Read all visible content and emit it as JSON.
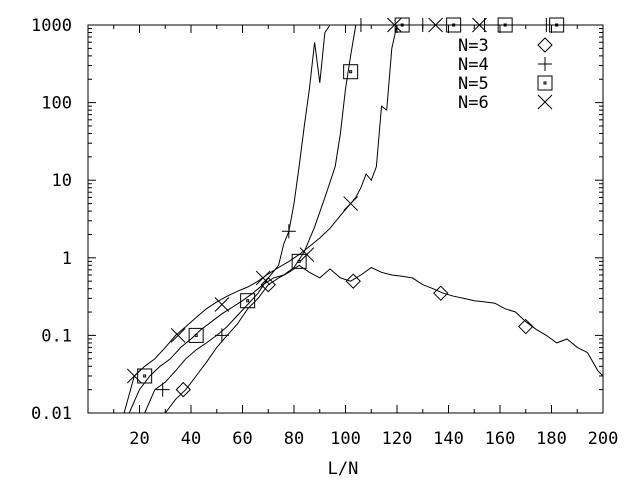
{
  "chart_data": {
    "type": "line",
    "xlabel": "L/N",
    "ylabel": "",
    "xlim": [
      0,
      200
    ],
    "ylim": [
      0.01,
      1000
    ],
    "yscale": "log",
    "grid": false,
    "legend_position": "top-right",
    "x_ticks": [
      "20",
      "40",
      "60",
      "80",
      "100",
      "120",
      "140",
      "160",
      "180",
      "200"
    ],
    "x_tick_values": [
      20,
      40,
      60,
      80,
      100,
      120,
      140,
      160,
      180,
      200
    ],
    "y_ticks": [
      "0.01",
      "0.1",
      "1",
      "10",
      "100",
      "1000"
    ],
    "y_tick_values": [
      0.01,
      0.1,
      1,
      10,
      100,
      1000
    ],
    "series": [
      {
        "name": "N=3",
        "marker": "diamond",
        "x": [
          18,
          24,
          30,
          34,
          38,
          42,
          46,
          50,
          54,
          58,
          62,
          66,
          70,
          74,
          78,
          82,
          86,
          90,
          94,
          98,
          102,
          106,
          110,
          114,
          118,
          122,
          126,
          130,
          134,
          138,
          142,
          146,
          150,
          154,
          158,
          162,
          166,
          170,
          174,
          178,
          182,
          186,
          190,
          194,
          198,
          200
        ],
        "y": [
          0.01,
          0.01,
          0.01,
          0.015,
          0.02,
          0.03,
          0.045,
          0.07,
          0.1,
          0.14,
          0.22,
          0.3,
          0.45,
          0.55,
          0.65,
          0.8,
          0.65,
          0.55,
          0.72,
          0.55,
          0.5,
          0.6,
          0.75,
          0.65,
          0.6,
          0.58,
          0.55,
          0.45,
          0.4,
          0.35,
          0.32,
          0.3,
          0.28,
          0.27,
          0.26,
          0.22,
          0.2,
          0.15,
          0.12,
          0.1,
          0.08,
          0.09,
          0.07,
          0.06,
          0.035,
          0.03
        ],
        "marker_x": [
          37,
          70,
          103,
          137,
          170
        ],
        "marker_y": [
          0.02,
          0.45,
          0.5,
          0.35,
          0.13
        ]
      },
      {
        "name": "N=4",
        "marker": "plus",
        "x": [
          14,
          18,
          22,
          26,
          30,
          34,
          38,
          42,
          46,
          50,
          54,
          58,
          62,
          66,
          70,
          74,
          76,
          78,
          80,
          82,
          84,
          86,
          88,
          90,
          92,
          94
        ],
        "y": [
          0.01,
          0.01,
          0.01,
          0.02,
          0.025,
          0.035,
          0.05,
          0.065,
          0.08,
          0.1,
          0.13,
          0.18,
          0.25,
          0.35,
          0.55,
          0.8,
          1.5,
          2.2,
          5,
          15,
          50,
          150,
          600,
          180,
          800,
          1000
        ],
        "marker_x": [
          29,
          52,
          78,
          106,
          130,
          154,
          178
        ],
        "marker_y": [
          0.02,
          0.1,
          2.2,
          1000,
          1000,
          1000,
          1000
        ]
      },
      {
        "name": "N=5",
        "marker": "square",
        "x": [
          12,
          16,
          20,
          24,
          28,
          32,
          36,
          40,
          44,
          48,
          52,
          56,
          60,
          64,
          68,
          72,
          76,
          80,
          84,
          88,
          92,
          96,
          98,
          100,
          102,
          104
        ],
        "y": [
          0.01,
          0.01,
          0.02,
          0.03,
          0.04,
          0.05,
          0.07,
          0.09,
          0.12,
          0.15,
          0.19,
          0.23,
          0.28,
          0.35,
          0.45,
          0.55,
          0.6,
          0.75,
          1.2,
          2.5,
          6,
          15,
          40,
          150,
          400,
          1000
        ],
        "marker_x": [
          22,
          42,
          62,
          82,
          102,
          122,
          142,
          162,
          182
        ],
        "marker_y": [
          0.03,
          0.1,
          0.28,
          0.9,
          250,
          1000,
          1000,
          1000,
          1000
        ]
      },
      {
        "name": "N=6",
        "marker": "x",
        "x": [
          10,
          14,
          18,
          22,
          26,
          30,
          34,
          38,
          42,
          46,
          50,
          54,
          58,
          62,
          66,
          70,
          74,
          78,
          82,
          86,
          90,
          94,
          98,
          102,
          104,
          106,
          108,
          110,
          112,
          114,
          116,
          118,
          120
        ],
        "y": [
          0.01,
          0.01,
          0.03,
          0.04,
          0.05,
          0.07,
          0.1,
          0.13,
          0.17,
          0.22,
          0.27,
          0.32,
          0.37,
          0.42,
          0.5,
          0.62,
          0.75,
          0.9,
          1.1,
          1.4,
          1.8,
          2.4,
          3.5,
          5,
          6,
          8,
          12,
          10,
          15,
          90,
          80,
          500,
          1000
        ],
        "marker_x": [
          18,
          35,
          52,
          68,
          85,
          102,
          119,
          135,
          152
        ],
        "marker_y": [
          0.03,
          0.1,
          0.25,
          0.55,
          1.1,
          5,
          1000,
          1000,
          1000
        ]
      }
    ]
  }
}
